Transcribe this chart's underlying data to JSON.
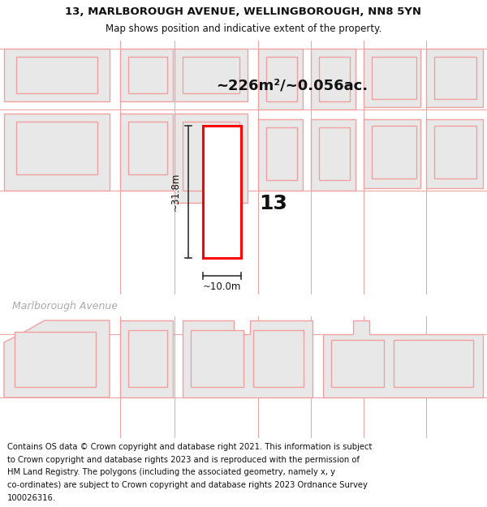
{
  "title_line1": "13, MARLBOROUGH AVENUE, WELLINGBOROUGH, NN8 5YN",
  "title_line2": "Map shows position and indicative extent of the property.",
  "footer_lines": [
    "Contains OS data © Crown copyright and database right 2021. This information is subject",
    "to Crown copyright and database rights 2023 and is reproduced with the permission of",
    "HM Land Registry. The polygons (including the associated geometry, namely x, y",
    "co-ordinates) are subject to Crown copyright and database rights 2023 Ordnance Survey",
    "100026316."
  ],
  "area_label": "~226m²/~0.056ac.",
  "width_label": "~10.0m",
  "height_label": "~31.8m",
  "number_label": "13",
  "street_label": "Marlborough Avenue",
  "map_bg": "#f8f8f8",
  "header_bg": "#f0f0f0",
  "footer_bg": "#f0f0f0",
  "building_fill": "#e8e8e8",
  "building_edge_light": "#f0a0a0",
  "highlight_fill": "#ffffff",
  "highlight_edge": "#ff0000",
  "title_fontsize": 9.5,
  "subtitle_fontsize": 8.5,
  "footer_fontsize": 7.2,
  "street_label_fontsize": 9,
  "number_fontsize": 18,
  "area_fontsize": 13,
  "dim_fontsize": 8.5
}
